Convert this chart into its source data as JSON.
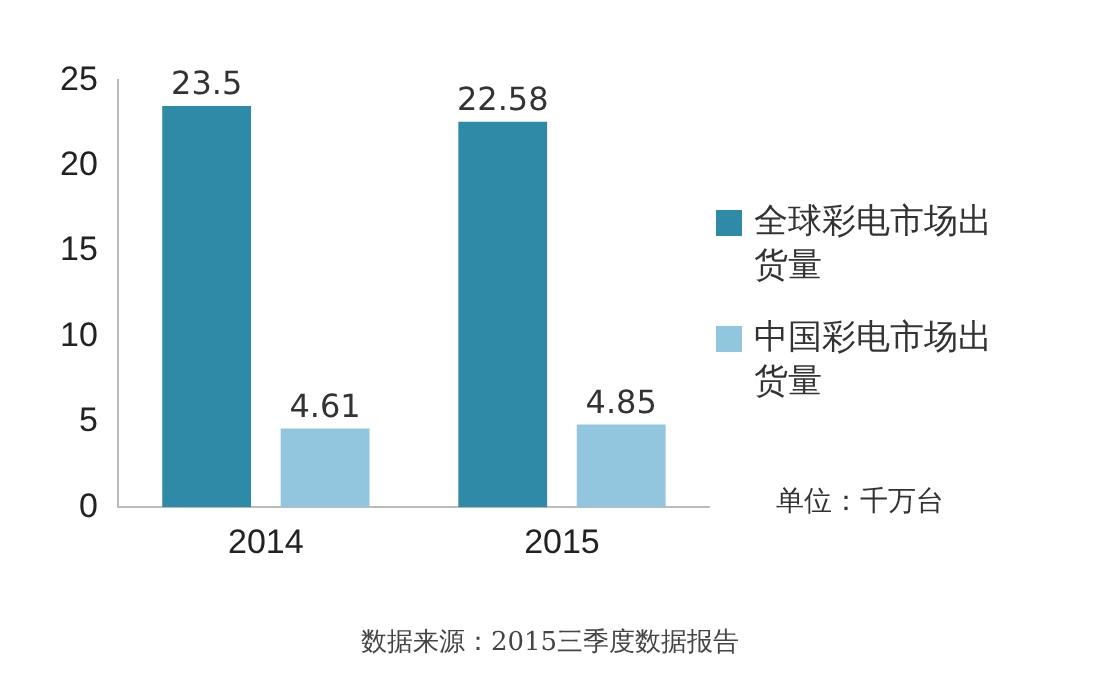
{
  "chart_data": {
    "type": "bar",
    "categories": [
      "2014",
      "2015"
    ],
    "series": [
      {
        "name": "全球彩电市场出货量",
        "color": "#2e8aa6",
        "values": [
          23.5,
          22.58
        ]
      },
      {
        "name": "中国彩电市场出货量",
        "color": "#92c5de",
        "values": [
          4.61,
          4.85
        ]
      }
    ],
    "ylim": [
      0,
      25
    ],
    "yticks": [
      0,
      5,
      10,
      15,
      20,
      25
    ],
    "grid": false,
    "legend": "right",
    "data_labels": true,
    "annotations": [
      "单位：千万台",
      "数据来源：2015三季度数据报告"
    ]
  }
}
